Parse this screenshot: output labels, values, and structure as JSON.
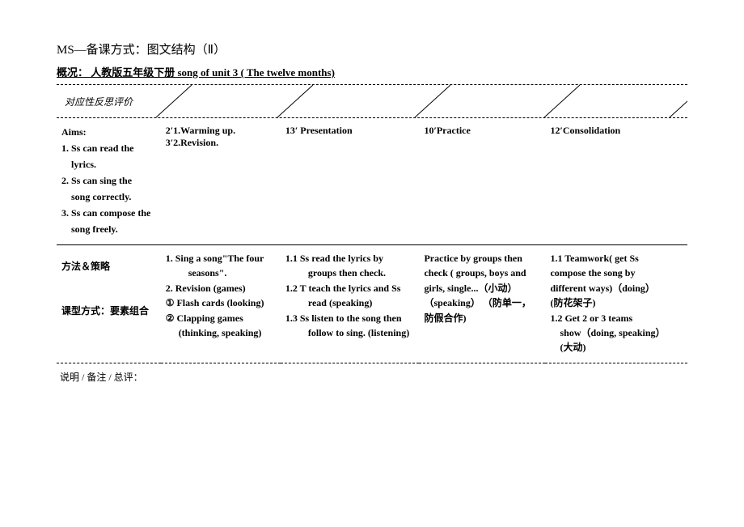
{
  "header": {
    "title": "MS—备课方式：图文结构（Ⅱ）",
    "subtitle": "概况： 人教版五年级下册      song of unit 3 ( The twelve months)            ",
    "reflection_label": "对应性反思评价"
  },
  "diagonals": {
    "positions": [
      145,
      295,
      465,
      625,
      780
    ],
    "stroke": "#000000",
    "width": 1
  },
  "row1": {
    "aims_title": "Aims:",
    "aims": [
      "1. Ss can read the",
      "lyrics.",
      "2. Ss can sing the",
      "song correctly.",
      "3. Ss can compose the",
      "song freely."
    ],
    "col2_line1": "2′1.Warming up.",
    "col2_line2": "3′2.Revision.",
    "col3": "13′    Presentation",
    "col4": "10′Practice",
    "col5": "12′Consolidation"
  },
  "row2": {
    "col1": "方法＆策略",
    "col2": [
      "1. Sing a song\"The four",
      "seasons\".",
      "2. Revision (games)",
      "① Flash cards (looking)",
      "② Clapping games",
      "(thinking,    speaking)"
    ],
    "col3": [
      "1.1   Ss read the lyrics by",
      "groups       then check.",
      "1.2   T teach the lyrics and Ss",
      "read    (speaking)",
      "1.3 Ss listen to the song then",
      "follow to sing. (listening)"
    ],
    "col4": [
      "Practice by groups then",
      "check ( groups, boys and",
      "girls, single...（小动）",
      "（speaking） （防单一，",
      "防假合作)"
    ],
    "col5": [
      "1.1 Teamwork( get Ss",
      "compose the song by",
      "different ways)（doing）",
      "(防花架子)",
      "1.2     Get 2 or 3 teams",
      "show（doing, speaking）",
      "(大动)"
    ],
    "bottom_label": "课型方式：要素组合"
  },
  "footer": "说明 / 备注 / 总评："
}
